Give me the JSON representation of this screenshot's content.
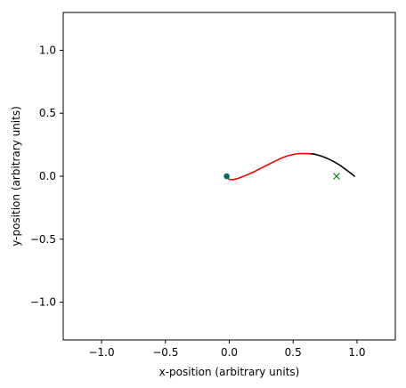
{
  "chart_data": {
    "type": "line",
    "xlabel": "x-position (arbitrary units)",
    "ylabel": "y-position (arbitrary units)",
    "xlim": [
      -1.3,
      1.3
    ],
    "ylim": [
      -1.3,
      1.3
    ],
    "xticks": [
      -1.0,
      -0.5,
      0.0,
      0.5,
      1.0
    ],
    "yticks": [
      -1.0,
      -0.5,
      0.0,
      0.5,
      1.0
    ],
    "xtick_labels": [
      "−1.0",
      "−0.5",
      "0.0",
      "0.5",
      "1.0"
    ],
    "ytick_labels": [
      "−1.0",
      "−0.5",
      "0.0",
      "0.5",
      "1.0"
    ],
    "grid": false,
    "series": [
      {
        "color": "#000000",
        "style": "line",
        "x": [
          0.62,
          0.67,
          0.72,
          0.77,
          0.82,
          0.87,
          0.91,
          0.95,
          0.98
        ],
        "y": [
          0.18,
          0.175,
          0.16,
          0.14,
          0.115,
          0.085,
          0.055,
          0.025,
          0.0
        ]
      },
      {
        "color": "#ff0000",
        "style": "line",
        "x": [
          -0.02,
          0.0,
          0.03,
          0.06,
          0.1,
          0.15,
          0.2,
          0.25,
          0.3,
          0.35,
          0.4,
          0.45,
          0.5,
          0.55,
          0.6,
          0.63
        ],
        "y": [
          -0.01,
          -0.025,
          -0.028,
          -0.02,
          -0.005,
          0.015,
          0.038,
          0.065,
          0.09,
          0.115,
          0.14,
          0.16,
          0.173,
          0.18,
          0.18,
          0.178
        ]
      }
    ],
    "markers": [
      {
        "x": -0.02,
        "y": 0.0,
        "marker": "circle",
        "color": "#006d6d"
      },
      {
        "x": 0.84,
        "y": 0.0,
        "marker": "x",
        "color": "#008000"
      }
    ]
  }
}
